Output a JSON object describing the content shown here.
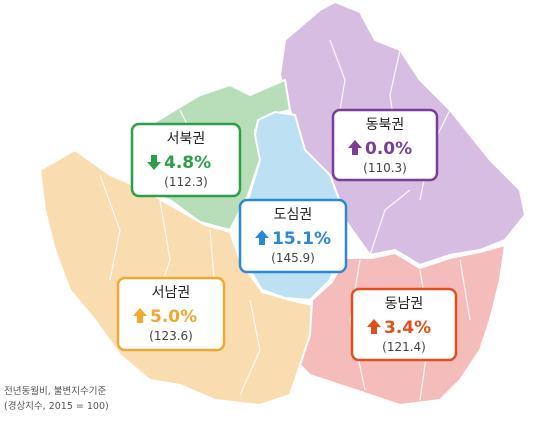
{
  "regions": [
    {
      "name": "서북권",
      "change": "4.8%",
      "index": "(112.3)"
    },
    {
      "name": "동북권",
      "change": "0.0%",
      "index": "(110.3)"
    },
    {
      "name": "도심권",
      "change": "15.1%",
      "index": "(145.9)"
    },
    {
      "name": "서남권",
      "change": "5.0%",
      "index": "(123.6)"
    },
    {
      "name": "동남권",
      "change": "3.4%",
      "index": "(121.4)"
    }
  ],
  "footnote": {
    "line1": "전년동월비, 불변지수기준",
    "line2": "(경상지수, 2015 = 100)"
  }
}
